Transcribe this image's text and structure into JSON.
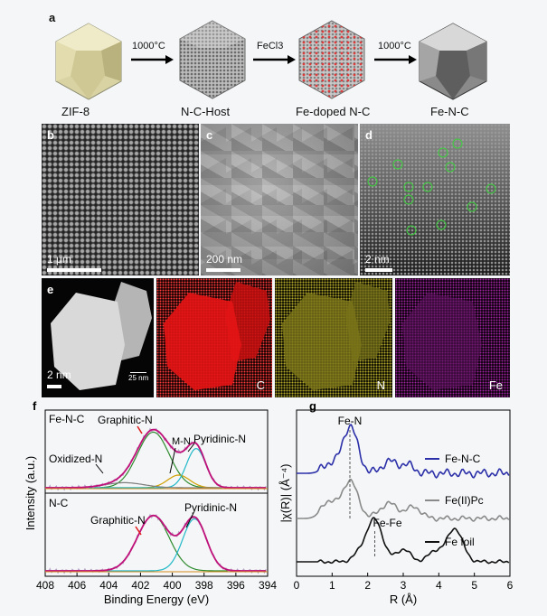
{
  "panel_a": {
    "letter": "a",
    "stages": [
      "ZIF-8",
      "N-C-Host",
      "Fe-doped N-C",
      "Fe-N-C"
    ],
    "steps": [
      "1000°C",
      "FeCl3",
      "1000°C"
    ]
  },
  "panel_b": {
    "letter": "b",
    "scale": "1 μm"
  },
  "panel_c": {
    "letter": "c",
    "scale": "200 nm"
  },
  "panel_d": {
    "letter": "d",
    "scale": "2 nm"
  },
  "panel_e": {
    "letter": "e",
    "scale": "2 nm",
    "scale_small": "25 nm",
    "maps": [
      {
        "label": "C",
        "color": "#e81010"
      },
      {
        "label": "N",
        "color": "#d7d030"
      },
      {
        "label": "Fe",
        "color": "#b02ab0"
      }
    ]
  },
  "chart_data": [
    {
      "panel": "f",
      "type": "line",
      "xlabel": "Binding Energy (eV)",
      "ylabel": "Intensity (a.u.)",
      "xlim": [
        408,
        394
      ],
      "x_ticks": [
        408,
        406,
        404,
        402,
        400,
        398,
        396,
        394
      ],
      "subplots": [
        {
          "name": "Fe-N-C",
          "annotations": [
            "Graphitic-N",
            "Pyridinic-N",
            "M-N",
            "Oxidized-N"
          ],
          "peaks_ev": {
            "Graphitic-N": 401.2,
            "M-N": 399.6,
            "Pyridinic-N": 398.5,
            "Oxidized-N": 403.0
          }
        },
        {
          "name": "N-C",
          "annotations": [
            "Graphitic-N",
            "Pyridinic-N"
          ],
          "peaks_ev": {
            "Graphitic-N": 401.2,
            "Pyridinic-N": 398.6
          }
        }
      ]
    },
    {
      "panel": "g",
      "type": "line",
      "xlabel": "R (Å)",
      "ylabel": "|χ(R)| (Å⁻⁴)",
      "xlim": [
        0,
        6
      ],
      "x_ticks": [
        0,
        1,
        2,
        3,
        4,
        5,
        6
      ],
      "series": [
        {
          "name": "Fe-N-C",
          "color": "#2b2fa8"
        },
        {
          "name": "Fe(II)Pc",
          "color": "#8a8a8a"
        },
        {
          "name": "Fe foil",
          "color": "#111111"
        }
      ],
      "annotations": [
        {
          "text": "Fe-N",
          "x": 1.5
        },
        {
          "text": "Fe-Fe",
          "x": 2.2
        }
      ]
    }
  ]
}
